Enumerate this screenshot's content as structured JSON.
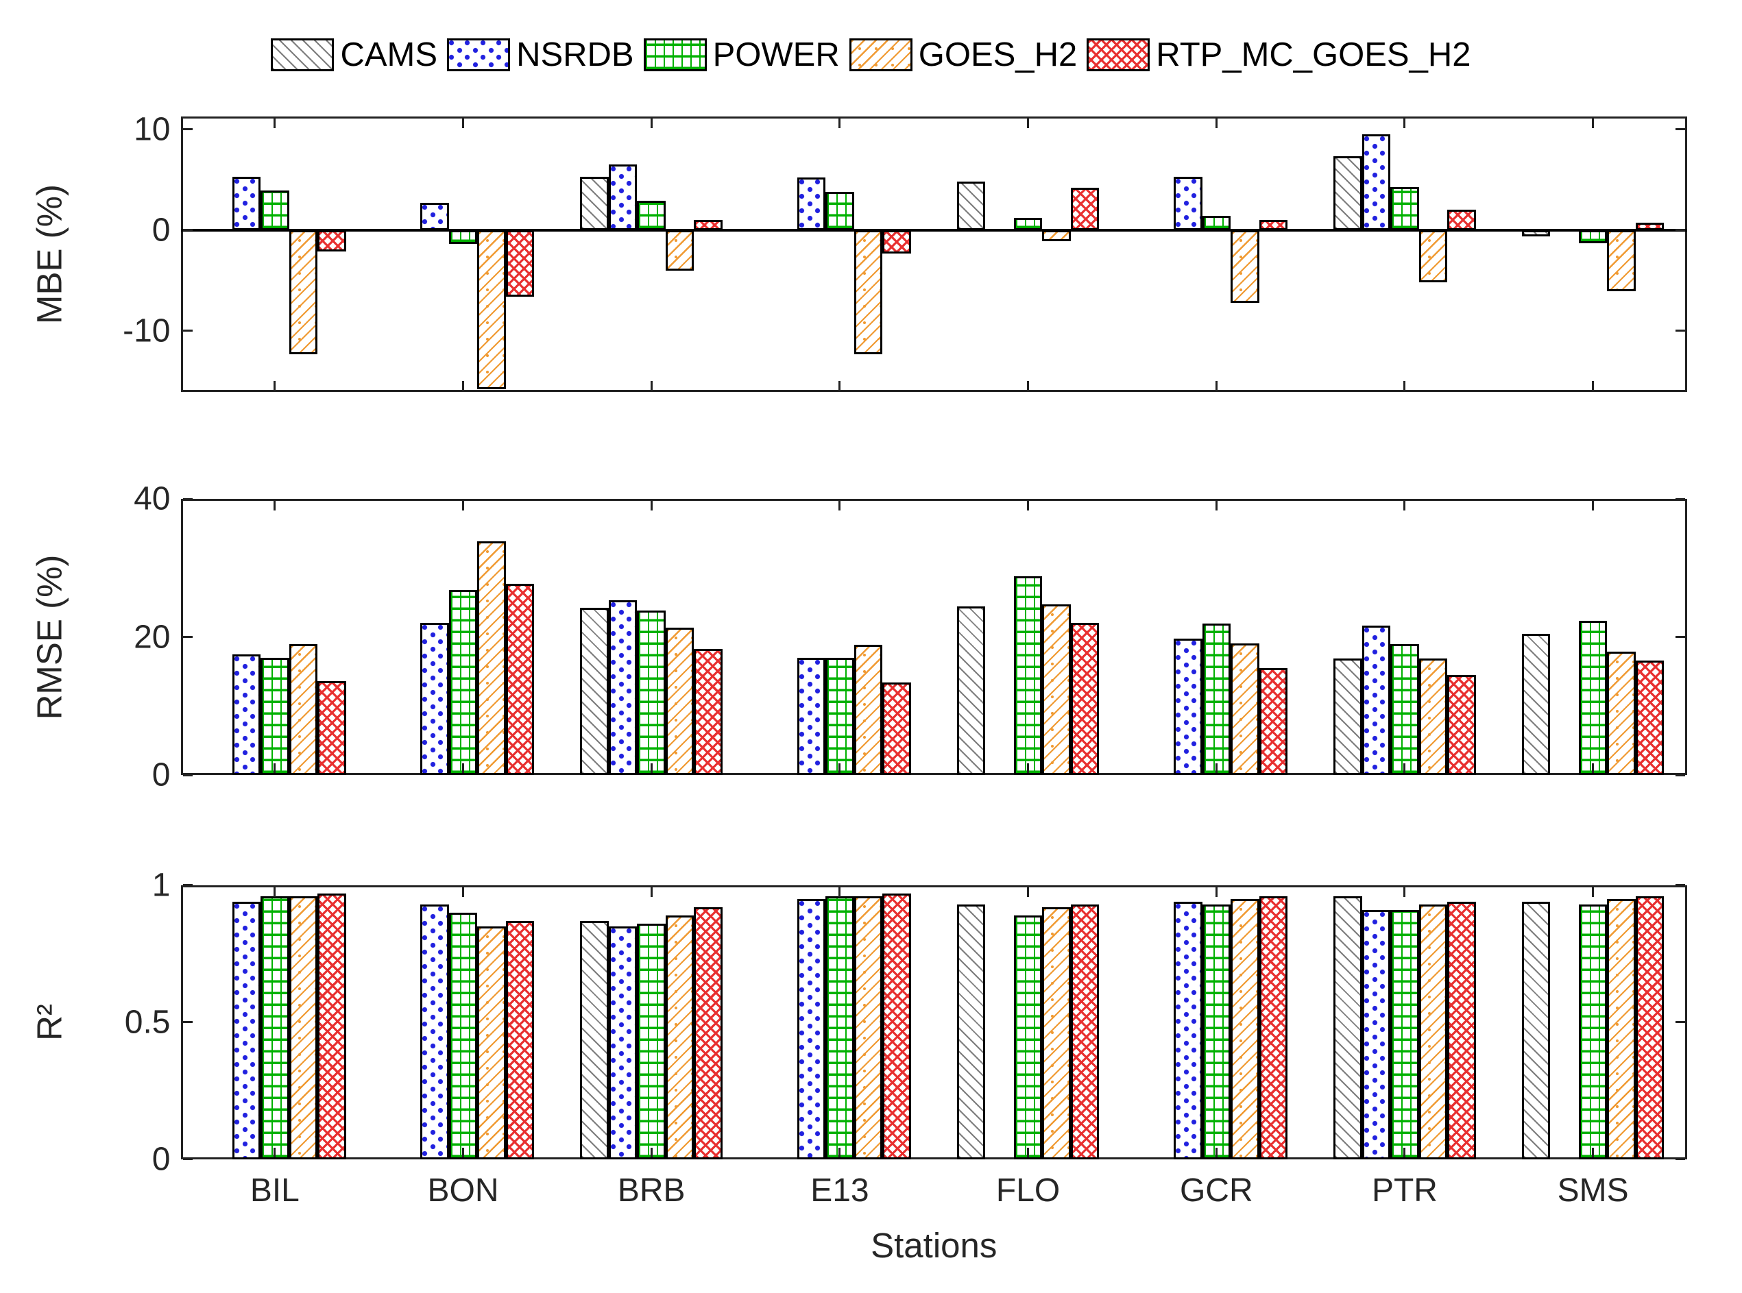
{
  "legend": {
    "entries": [
      {
        "label": "CAMS",
        "pattern": "cams",
        "color": "#7d7d7d"
      },
      {
        "label": "NSRDB",
        "pattern": "nsrdb",
        "color": "#2121df"
      },
      {
        "label": "POWER",
        "pattern": "power",
        "color": "#00b100"
      },
      {
        "label": "GOES_H2",
        "pattern": "goes",
        "color": "#f09a32"
      },
      {
        "label": "RTP_MC_GOES_H2",
        "pattern": "rtp",
        "color": "#e83030"
      }
    ]
  },
  "xlabel": "Stations",
  "chart_data": [
    {
      "type": "bar",
      "ylabel": "MBE (%)",
      "categories": [
        "BIL",
        "BON",
        "BRB",
        "E13",
        "FLO",
        "GCR",
        "PTR",
        "SMS"
      ],
      "series": [
        {
          "name": "CAMS",
          "values": [
            null,
            null,
            5.3,
            null,
            4.8,
            null,
            7.3,
            -0.6
          ]
        },
        {
          "name": "NSRDB",
          "values": [
            5.3,
            2.7,
            6.5,
            5.2,
            null,
            5.3,
            9.5,
            null
          ]
        },
        {
          "name": "POWER",
          "values": [
            3.9,
            -1.4,
            2.9,
            3.8,
            1.2,
            1.4,
            4.3,
            -1.3
          ]
        },
        {
          "name": "GOES_H2",
          "values": [
            -12.3,
            -15.8,
            -4.0,
            -12.3,
            -1.1,
            -7.2,
            -5.2,
            -6.1
          ]
        },
        {
          "name": "RTP_MC_GOES_H2",
          "values": [
            -2.1,
            -6.6,
            1.0,
            -2.3,
            4.2,
            1.0,
            2.0,
            0.7
          ]
        }
      ],
      "ylim": [
        -16.1,
        11.3
      ],
      "yticks": [
        10,
        0,
        -10
      ],
      "ytick_labels": [
        "10",
        "0",
        "-10"
      ],
      "zero_line": true,
      "grid": false,
      "legend_position": "top-center-outside"
    },
    {
      "type": "bar",
      "ylabel": "RMSE (%)",
      "categories": [
        "BIL",
        "BON",
        "BRB",
        "E13",
        "FLO",
        "GCR",
        "PTR",
        "SMS"
      ],
      "series": [
        {
          "name": "CAMS",
          "values": [
            null,
            null,
            24.2,
            null,
            24.4,
            null,
            16.9,
            20.4
          ]
        },
        {
          "name": "NSRDB",
          "values": [
            17.5,
            22.0,
            25.3,
            17.0,
            null,
            19.8,
            21.6,
            null
          ]
        },
        {
          "name": "POWER",
          "values": [
            17.0,
            26.8,
            23.8,
            17.0,
            28.8,
            21.9,
            19.0,
            22.3
          ]
        },
        {
          "name": "GOES_H2",
          "values": [
            19.0,
            33.8,
            21.3,
            18.9,
            24.7,
            19.1,
            16.9,
            17.9
          ]
        },
        {
          "name": "RTP_MC_GOES_H2",
          "values": [
            13.6,
            27.7,
            18.3,
            13.4,
            22.0,
            15.5,
            14.5,
            16.6
          ]
        }
      ],
      "ylim": [
        0,
        40
      ],
      "yticks": [
        40,
        20,
        0
      ],
      "ytick_labels": [
        "40",
        "20",
        "0"
      ],
      "zero_line": false,
      "grid": false
    },
    {
      "type": "bar",
      "ylabel": "R²",
      "categories": [
        "BIL",
        "BON",
        "BRB",
        "E13",
        "FLO",
        "GCR",
        "PTR",
        "SMS"
      ],
      "series": [
        {
          "name": "CAMS",
          "values": [
            null,
            null,
            0.87,
            null,
            0.93,
            null,
            0.96,
            0.94
          ]
        },
        {
          "name": "NSRDB",
          "values": [
            0.94,
            0.93,
            0.85,
            0.95,
            null,
            0.94,
            0.91,
            null
          ]
        },
        {
          "name": "POWER",
          "values": [
            0.96,
            0.9,
            0.86,
            0.96,
            0.89,
            0.93,
            0.91,
            0.93
          ]
        },
        {
          "name": "GOES_H2",
          "values": [
            0.96,
            0.85,
            0.89,
            0.96,
            0.92,
            0.95,
            0.93,
            0.95
          ]
        },
        {
          "name": "RTP_MC_GOES_H2",
          "values": [
            0.97,
            0.87,
            0.92,
            0.97,
            0.93,
            0.96,
            0.94,
            0.96
          ]
        }
      ],
      "ylim": [
        0,
        1
      ],
      "yticks": [
        1,
        0.5,
        0
      ],
      "ytick_labels": [
        "1",
        "0.5",
        "0"
      ],
      "zero_line": false,
      "grid": false,
      "show_x_labels": true
    }
  ]
}
